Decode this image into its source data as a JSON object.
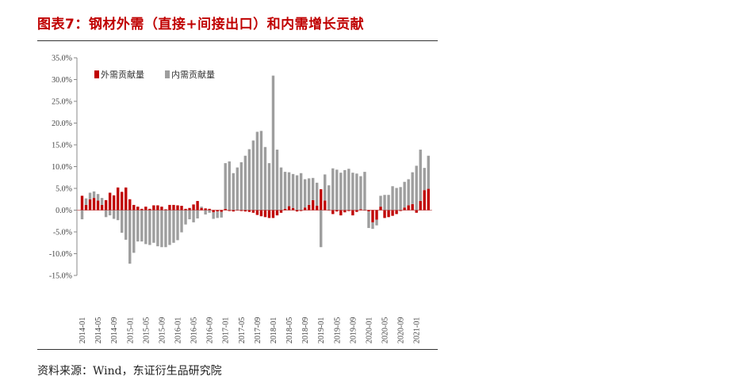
{
  "figure": {
    "title": "图表7：钢材外需（直接+间接出口）和内需增长贡献",
    "source": "资料来源：Wind，东证衍生品研究院"
  },
  "colors": {
    "external": "#c00000",
    "domestic": "#9e9e9e",
    "title": "#c00000"
  },
  "chart_data": {
    "type": "bar",
    "stacked": true,
    "title": "",
    "xlabel": "",
    "ylabel": "",
    "ylim": [
      -15,
      35
    ],
    "yticks": [
      "-15.0%",
      "-10.0%",
      "-5.0%",
      "0.0%",
      "5.0%",
      "10.0%",
      "15.0%",
      "20.0%",
      "25.0%",
      "30.0%",
      "35.0%"
    ],
    "legend_position": "top-left",
    "grid": false,
    "xtick_labels": [
      "2014-01",
      "2014-05",
      "2014-09",
      "2015-01",
      "2015-05",
      "2015-09",
      "2016-01",
      "2016-05",
      "2016-09",
      "2017-01",
      "2017-05",
      "2017-09",
      "2018-01",
      "2018-05",
      "2018-09",
      "2019-01",
      "2019-05",
      "2019-09",
      "2020-01",
      "2020-05",
      "2020-09",
      "2021-01"
    ],
    "categories": [
      "2014-01",
      "2014-02",
      "2014-03",
      "2014-04",
      "2014-05",
      "2014-06",
      "2014-07",
      "2014-08",
      "2014-09",
      "2014-10",
      "2014-11",
      "2014-12",
      "2015-01",
      "2015-02",
      "2015-03",
      "2015-04",
      "2015-05",
      "2015-06",
      "2015-07",
      "2015-08",
      "2015-09",
      "2015-10",
      "2015-11",
      "2015-12",
      "2016-01",
      "2016-02",
      "2016-03",
      "2016-04",
      "2016-05",
      "2016-06",
      "2016-07",
      "2016-08",
      "2016-09",
      "2016-10",
      "2016-11",
      "2016-12",
      "2017-01",
      "2017-02",
      "2017-03",
      "2017-04",
      "2017-05",
      "2017-06",
      "2017-07",
      "2017-08",
      "2017-09",
      "2017-10",
      "2017-11",
      "2017-12",
      "2018-01",
      "2018-02",
      "2018-03",
      "2018-04",
      "2018-05",
      "2018-06",
      "2018-07",
      "2018-08",
      "2018-09",
      "2018-10",
      "2018-11",
      "2018-12",
      "2019-01",
      "2019-02",
      "2019-03",
      "2019-04",
      "2019-05",
      "2019-06",
      "2019-07",
      "2019-08",
      "2019-09",
      "2019-10",
      "2019-11",
      "2019-12",
      "2020-01",
      "2020-02",
      "2020-03",
      "2020-04",
      "2020-05",
      "2020-06",
      "2020-07",
      "2020-08",
      "2020-09",
      "2020-10",
      "2020-11",
      "2020-12",
      "2021-01",
      "2021-02",
      "2021-03",
      "2021-04"
    ],
    "series": [
      {
        "name": "外需贡献量",
        "values": [
          3.3,
          1.2,
          2.5,
          2.8,
          2.2,
          1.2,
          2.3,
          4,
          3.4,
          5.2,
          4.2,
          5.2,
          2.5,
          1.2,
          0.8,
          0.3,
          0.8,
          0.3,
          1.1,
          1.1,
          0.8,
          0.2,
          1.2,
          1.2,
          1.1,
          1,
          0.3,
          0.5,
          1.3,
          2.1,
          0.5,
          0.4,
          0.3,
          -0.5,
          -0.3,
          -0.4,
          0.3,
          -0.2,
          -0.3,
          -0.1,
          -0.2,
          -0.3,
          -0.4,
          -0.6,
          -1.1,
          -1.4,
          -1.6,
          -1.8,
          -1.8,
          -1.2,
          -0.6,
          0.3,
          0.9,
          0.5,
          -0.3,
          -0.2,
          0.6,
          1.2,
          2.3,
          1,
          4.8,
          2.2,
          -0.1,
          -0.9,
          -0.3,
          -1.2,
          -0.5,
          -0.2,
          -1.2,
          -0.4,
          0.2,
          -0.1,
          -0.3,
          -2.8,
          -2.2,
          0.8,
          -1.8,
          -1.6,
          -1.3,
          -0.9,
          -0.2,
          0.6,
          1.1,
          1.4,
          -0.6,
          2.1,
          4.6,
          4.9
        ]
      },
      {
        "name": "内需贡献量",
        "values": [
          -2.1,
          1.5,
          1.5,
          1.5,
          1.5,
          1.6,
          -1.6,
          -1.2,
          -2,
          -2.3,
          -5.2,
          -6.8,
          -12.3,
          -9.8,
          -7.2,
          -7.2,
          -7.8,
          -8,
          -7.5,
          -8.3,
          -8.5,
          -8.5,
          -8,
          -7.5,
          -6.9,
          -5.1,
          -3.3,
          -2.1,
          -2.8,
          -1.9,
          0.3,
          -1,
          -0.6,
          -1.5,
          -1.5,
          -1.3,
          10.5,
          11.2,
          8.5,
          9.8,
          11,
          12.5,
          14,
          16,
          18,
          18.2,
          14.5,
          10.8,
          30.9,
          13.9,
          9.8,
          8.5,
          7.8,
          7.8,
          8,
          8.5,
          6.5,
          6.1,
          5.1,
          5.3,
          -8.5,
          6,
          5.7,
          9.6,
          9.3,
          8.6,
          9.2,
          9.5,
          8.6,
          8.4,
          7.6,
          8.8,
          -3.8,
          -1.5,
          -1.3,
          2.5,
          3.5,
          3.5,
          5.5,
          5.1,
          5.3,
          5.9,
          6,
          7.3,
          10.2,
          11.8,
          5.1,
          7.6
        ]
      }
    ]
  }
}
